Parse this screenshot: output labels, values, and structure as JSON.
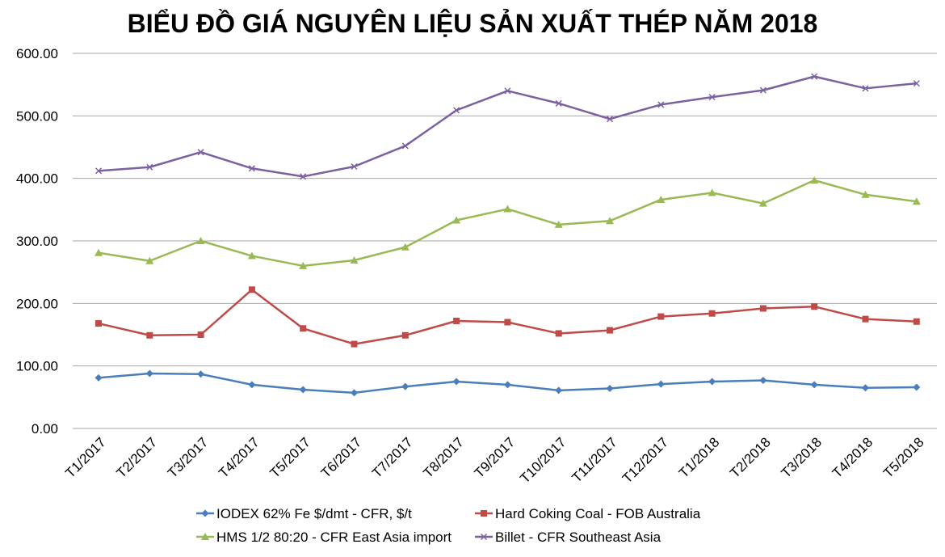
{
  "chart_data": {
    "type": "line",
    "title": "BIỂU ĐỒ GIÁ NGUYÊN LIỆU SẢN XUẤT THÉP NĂM 2018",
    "xlabel": "",
    "ylabel": "",
    "ylim": [
      0,
      600
    ],
    "yticks": [
      "0.00",
      "100.00",
      "200.00",
      "300.00",
      "400.00",
      "500.00",
      "600.00"
    ],
    "grid": true,
    "legend_position": "bottom",
    "categories": [
      "T1/2017",
      "T2/2017",
      "T3/2017",
      "T4/2017",
      "T5/2017",
      "T6/2017",
      "T7/2017",
      "T8/2017",
      "T9/2017",
      "T10/2017",
      "T11/2017",
      "T12/2017",
      "T1/2018",
      "T2/2018",
      "T3/2018",
      "T4/2018",
      "T5/2018"
    ],
    "series": [
      {
        "name": "IODEX 62% Fe $/dmt - CFR, $/t",
        "color": "#4a7ebb",
        "marker": "diamond",
        "values": [
          81,
          88,
          87,
          70,
          62,
          57,
          67,
          75,
          70,
          61,
          64,
          71,
          75,
          77,
          70,
          65,
          66
        ]
      },
      {
        "name": "Hard Coking Coal - FOB Australia",
        "color": "#be4b48",
        "marker": "square",
        "values": [
          168,
          149,
          150,
          222,
          160,
          135,
          149,
          172,
          170,
          152,
          157,
          179,
          184,
          192,
          195,
          175,
          171
        ]
      },
      {
        "name": "HMS 1/2 80:20 - CFR East Asia import",
        "color": "#98b954",
        "marker": "triangle",
        "values": [
          281,
          268,
          300,
          276,
          260,
          269,
          290,
          333,
          351,
          326,
          332,
          366,
          377,
          360,
          397,
          374,
          363
        ]
      },
      {
        "name": "Billet - CFR Southeast Asia",
        "color": "#7d60a0",
        "marker": "x",
        "values": [
          412,
          418,
          442,
          416,
          403,
          419,
          452,
          509,
          540,
          520,
          495,
          518,
          530,
          541,
          563,
          544,
          552
        ]
      }
    ]
  }
}
